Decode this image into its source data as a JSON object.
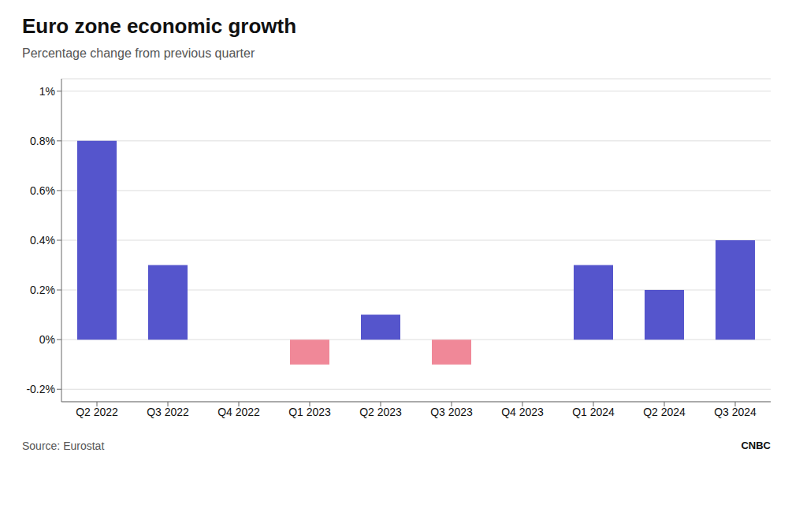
{
  "chart_data": {
    "type": "bar",
    "title": "Euro zone economic growth",
    "subtitle": "Percentage change from previous quarter",
    "source": "Source: Eurostat",
    "annotations": [
      "CNBC"
    ],
    "categories": [
      "Q2 2022",
      "Q3 2022",
      "Q4 2022",
      "Q1 2023",
      "Q2 2023",
      "Q3 2023",
      "Q4 2023",
      "Q1 2024",
      "Q2 2024",
      "Q3 2024"
    ],
    "values": [
      0.8,
      0.3,
      0.0,
      -0.1,
      0.1,
      -0.1,
      0.0,
      0.3,
      0.2,
      0.4
    ],
    "colors": [
      "#5555cc",
      "#5555cc",
      "#5555cc",
      "#f08898",
      "#5555cc",
      "#f08898",
      "#5555cc",
      "#5555cc",
      "#5555cc",
      "#5555cc"
    ],
    "ylim": [
      -0.25,
      1.05
    ],
    "yticks": [
      {
        "value": -0.2,
        "label": "-0.2%"
      },
      {
        "value": 0.0,
        "label": "0%"
      },
      {
        "value": 0.2,
        "label": "0.2%"
      },
      {
        "value": 0.4,
        "label": "0.4%"
      },
      {
        "value": 0.6,
        "label": "0.6%"
      },
      {
        "value": 0.8,
        "label": "0.8%"
      },
      {
        "value": 1.0,
        "label": "1%"
      }
    ],
    "grid": true
  }
}
